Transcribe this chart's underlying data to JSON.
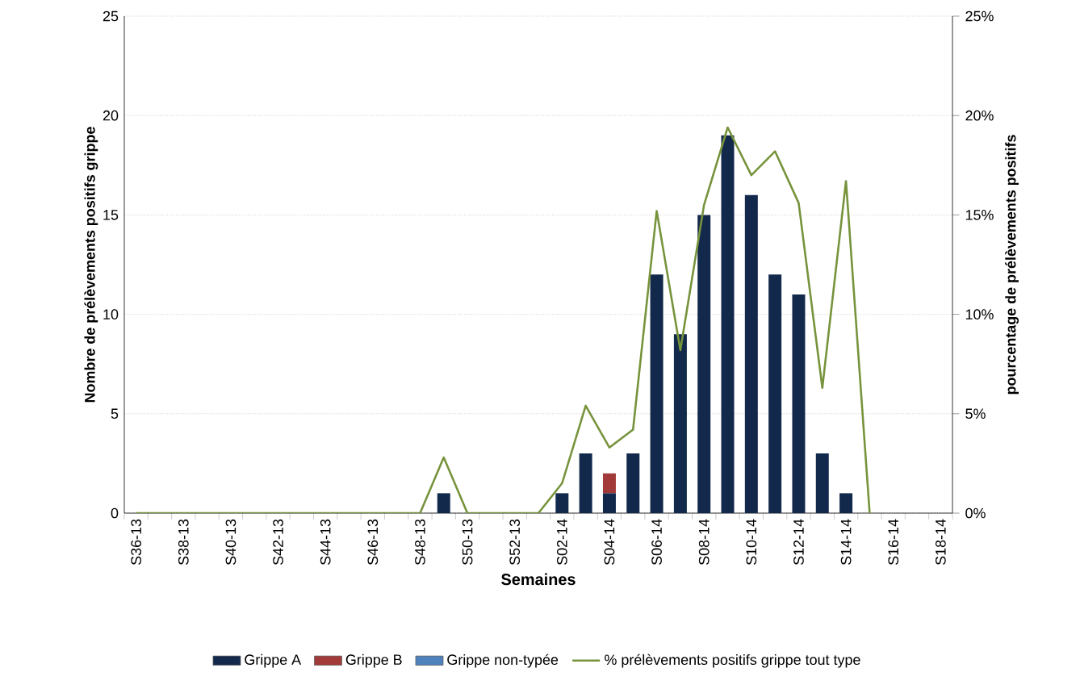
{
  "chart_data": {
    "type": "bar",
    "stacked": true,
    "categories": [
      "S36-13",
      null,
      "S38-13",
      null,
      "S40-13",
      null,
      "S42-13",
      null,
      "S44-13",
      null,
      "S46-13",
      null,
      "S48-13",
      null,
      "S50-13",
      null,
      "S52-13",
      null,
      "S02-14",
      null,
      "S04-14",
      null,
      "S06-14",
      null,
      "S08-14",
      null,
      "S10-14",
      null,
      "S12-14",
      null,
      "S14-14",
      null,
      "S16-14",
      null,
      "S18-14"
    ],
    "xlabel": "Semaines",
    "ylabel": "Nombre de prélèvements positifs grippe",
    "y2label": "pourcentage de prélèvements positifs",
    "ylim": [
      0,
      25
    ],
    "yticks": [
      0,
      5,
      10,
      15,
      20,
      25
    ],
    "y2lim": [
      0,
      25
    ],
    "y2ticks": [
      {
        "value": 0,
        "label": "0%"
      },
      {
        "value": 5,
        "label": "5%"
      },
      {
        "value": 10,
        "label": "10%"
      },
      {
        "value": 15,
        "label": "15%"
      },
      {
        "value": 20,
        "label": "20%"
      },
      {
        "value": 25,
        "label": "25%"
      }
    ],
    "grid": "y",
    "legend": "bottom",
    "series": [
      {
        "name": "Grippe A",
        "color": "#13294b",
        "values": [
          0,
          0,
          0,
          0,
          0,
          0,
          0,
          0,
          0,
          0,
          0,
          0,
          0,
          1,
          0,
          0,
          0,
          0,
          1,
          3,
          1,
          3,
          12,
          9,
          15,
          19,
          16,
          12,
          11,
          3,
          1,
          0,
          0,
          0,
          0
        ]
      },
      {
        "name": "Grippe B",
        "color": "#a33a3a",
        "values": [
          0,
          0,
          0,
          0,
          0,
          0,
          0,
          0,
          0,
          0,
          0,
          0,
          0,
          0,
          0,
          0,
          0,
          0,
          0,
          0,
          1,
          0,
          0,
          0,
          0,
          0,
          0,
          0,
          0,
          0,
          0,
          0,
          0,
          0,
          0
        ]
      },
      {
        "name": "Grippe non-typée",
        "color": "#4f81bd",
        "values": [
          0,
          0,
          0,
          0,
          0,
          0,
          0,
          0,
          0,
          0,
          0,
          0,
          0,
          0,
          0,
          0,
          0,
          0,
          0,
          0,
          0,
          0,
          0,
          0,
          0,
          0,
          0,
          0,
          0,
          0,
          0,
          0,
          0,
          0,
          0
        ]
      },
      {
        "name": "% prélèvements positifs grippe tout type",
        "type": "line",
        "axis": "y2",
        "color": "#77933c",
        "values": [
          0,
          0,
          0,
          0,
          0,
          0,
          0,
          0,
          0,
          0,
          0,
          0,
          0,
          2.8,
          0,
          0,
          0,
          0,
          1.5,
          5.4,
          3.3,
          4.2,
          15.2,
          8.2,
          15.5,
          19.4,
          17,
          18.2,
          15.6,
          6.3,
          16.7,
          0,
          null,
          null,
          null
        ]
      }
    ]
  }
}
